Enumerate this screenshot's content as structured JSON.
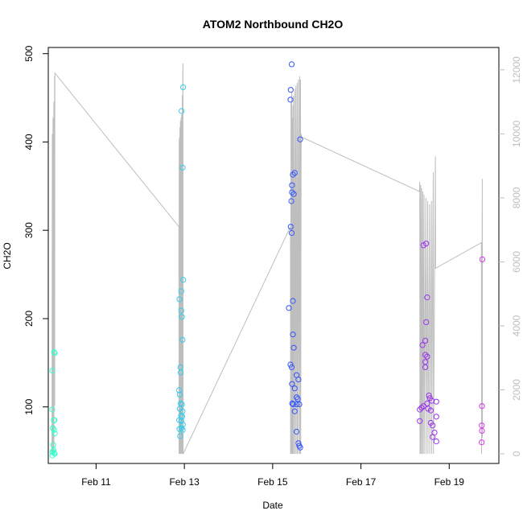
{
  "chart_data": {
    "type": "scatter",
    "title": "ATOM2 Northbound CH2O",
    "xlabel": "Date",
    "ylabel": "CH2O",
    "x_ticks": [
      "Feb 11",
      "Feb 13",
      "Feb 15",
      "Feb 17",
      "Feb 19"
    ],
    "y_ticks": [
      "100",
      "200",
      "300",
      "400",
      "500"
    ],
    "y2_ticks": [
      "0",
      "2000",
      "4000",
      "6000",
      "8000",
      "10000",
      "12000"
    ],
    "xlim": [
      "2016-02-09 22:00",
      "2016-02-20 03:00"
    ],
    "ylim": [
      36,
      507
    ],
    "y2lim": [
      -300,
      12700
    ],
    "grid": false,
    "legend": "none",
    "colors": {
      "axis": "#000000",
      "secondary": "#bebebe",
      "start": "#33ffcc",
      "mid": "#3355ff",
      "end": "#dd33ee"
    },
    "series": [
      {
        "kind": "points",
        "axis": "left",
        "points": [
          [
            "2016-02-10 00:10",
            141,
            "#33ffcc"
          ],
          [
            "2016-02-10 00:10",
            97,
            "#33ffcc"
          ],
          [
            "2016-02-10 00:30",
            76,
            "#33ffcc"
          ],
          [
            "2016-02-10 00:20",
            49,
            "#33ffcc"
          ],
          [
            "2016-02-10 00:10",
            45,
            "#33ffcc"
          ],
          [
            "2016-02-10 00:40",
            57,
            "#33ffcc"
          ],
          [
            "2016-02-10 01:10",
            162,
            "#33ffcc"
          ],
          [
            "2016-02-10 01:30",
            161,
            "#33ffcc"
          ],
          [
            "2016-02-10 01:00",
            85,
            "#33ffcc"
          ],
          [
            "2016-02-10 01:20",
            85,
            "#33ffcc"
          ],
          [
            "2016-02-10 01:10",
            74,
            "#33ffcc"
          ],
          [
            "2016-02-10 01:30",
            70,
            "#33ffcc"
          ],
          [
            "2016-02-10 01:10",
            48,
            "#33ffcc"
          ],
          [
            "2016-02-10 01:30",
            47,
            "#33ffcc"
          ],
          [
            "2016-02-10 00:50",
            51,
            "#33ffcc"
          ],
          [
            "2016-02-12 21:10",
            119,
            "#33ccee"
          ],
          [
            "2016-02-12 21:20",
            222,
            "#33ccee"
          ],
          [
            "2016-02-12 21:30",
            114,
            "#33ccee"
          ],
          [
            "2016-02-12 21:30",
            98,
            "#33ccee"
          ],
          [
            "2016-02-12 21:10",
            85,
            "#33ccee"
          ],
          [
            "2016-02-12 21:20",
            75,
            "#33ccee"
          ],
          [
            "2016-02-12 21:40",
            67,
            "#33ccee"
          ],
          [
            "2016-02-12 21:50",
            145,
            "#33ccee"
          ],
          [
            "2016-02-12 22:00",
            139,
            "#33ccee"
          ],
          [
            "2016-02-12 22:20",
            231,
            "#33ccee"
          ],
          [
            "2016-02-12 22:20",
            209,
            "#33ccee"
          ],
          [
            "2016-02-12 22:40",
            202,
            "#33ccee"
          ],
          [
            "2016-02-12 22:10",
            90,
            "#33ccee"
          ],
          [
            "2016-02-12 22:40",
            103,
            "#33ccee"
          ],
          [
            "2016-02-12 22:00",
            104,
            "#33ccee"
          ],
          [
            "2016-02-12 22:30",
            76,
            "#33ccee"
          ],
          [
            "2016-02-12 22:20",
            84,
            "#33ccee"
          ],
          [
            "2016-02-12 22:30",
            435,
            "#33ccee"
          ],
          [
            "2016-02-12 23:00",
            371,
            "#33ccee"
          ],
          [
            "2016-02-12 23:00",
            176,
            "#33ccee"
          ],
          [
            "2016-02-12 23:20",
            244,
            "#33ccee"
          ],
          [
            "2016-02-12 23:20",
            462,
            "#33ccee"
          ],
          [
            "2016-02-12 23:00",
            95,
            "#33ccee"
          ],
          [
            "2016-02-12 23:10",
            80,
            "#33ccee"
          ],
          [
            "2016-02-12 23:10",
            74,
            "#33ccee"
          ],
          [
            "2016-02-12 22:50",
            89,
            "#33ccee"
          ],
          [
            "2016-02-15 10:20",
            488,
            "#3355ff"
          ],
          [
            "2016-02-15 09:50",
            459,
            "#3355ff"
          ],
          [
            "2016-02-15 09:40",
            448,
            "#3355ff"
          ],
          [
            "2016-02-15 15:00",
            403,
            "#3355ff"
          ],
          [
            "2016-02-15 12:00",
            365,
            "#3355ff"
          ],
          [
            "2016-02-15 11:00",
            363,
            "#3355ff"
          ],
          [
            "2016-02-15 10:30",
            351,
            "#3355ff"
          ],
          [
            "2016-02-15 10:30",
            343,
            "#3355ff"
          ],
          [
            "2016-02-15 11:30",
            341,
            "#3355ff"
          ],
          [
            "2016-02-15 10:10",
            333,
            "#3355ff"
          ],
          [
            "2016-02-15 09:50",
            304,
            "#3355ff"
          ],
          [
            "2016-02-15 10:20",
            297,
            "#3355ff"
          ],
          [
            "2016-02-15 11:00",
            220,
            "#3355ff"
          ],
          [
            "2016-02-15 08:50",
            212,
            "#3355ff"
          ],
          [
            "2016-02-15 11:00",
            182,
            "#3355ff"
          ],
          [
            "2016-02-15 11:30",
            167,
            "#3355ff"
          ],
          [
            "2016-02-15 09:40",
            148,
            "#3355ff"
          ],
          [
            "2016-02-15 10:20",
            145,
            "#3355ff"
          ],
          [
            "2016-02-15 13:00",
            136,
            "#3355ff"
          ],
          [
            "2016-02-15 14:00",
            131,
            "#3355ff"
          ],
          [
            "2016-02-15 10:30",
            126,
            "#3355ff"
          ],
          [
            "2016-02-15 12:00",
            121,
            "#3355ff"
          ],
          [
            "2016-02-15 13:00",
            111,
            "#3355ff"
          ],
          [
            "2016-02-15 13:40",
            109,
            "#3355ff"
          ],
          [
            "2016-02-15 10:40",
            104,
            "#3355ff"
          ],
          [
            "2016-02-15 11:10",
            103,
            "#3355ff"
          ],
          [
            "2016-02-15 13:00",
            103,
            "#3355ff"
          ],
          [
            "2016-02-15 14:30",
            103,
            "#3355ff"
          ],
          [
            "2016-02-15 12:00",
            95,
            "#3355ff"
          ],
          [
            "2016-02-15 13:00",
            72,
            "#3355ff"
          ],
          [
            "2016-02-15 14:00",
            59,
            "#3355ff"
          ],
          [
            "2016-02-15 14:30",
            56,
            "#3355ff"
          ],
          [
            "2016-02-15 15:00",
            54,
            "#3355ff"
          ],
          [
            "2016-02-18 10:00",
            283,
            "#9933ee"
          ],
          [
            "2016-02-18 11:30",
            285,
            "#9933ee"
          ],
          [
            "2016-02-18 12:00",
            224,
            "#9933ee"
          ],
          [
            "2016-02-18 11:30",
            196,
            "#9933ee"
          ],
          [
            "2016-02-18 11:00",
            175,
            "#9933ee"
          ],
          [
            "2016-02-18 09:30",
            170,
            "#9933ee"
          ],
          [
            "2016-02-18 11:00",
            159,
            "#9933ee"
          ],
          [
            "2016-02-18 12:00",
            157,
            "#9933ee"
          ],
          [
            "2016-02-18 11:00",
            151,
            "#9933ee"
          ],
          [
            "2016-02-18 11:00",
            145,
            "#9933ee"
          ],
          [
            "2016-02-18 13:00",
            113,
            "#9933ee"
          ],
          [
            "2016-02-18 13:30",
            110,
            "#9933ee"
          ],
          [
            "2016-02-18 14:30",
            107,
            "#9933ee"
          ],
          [
            "2016-02-18 12:00",
            104,
            "#9933ee"
          ],
          [
            "2016-02-18 10:00",
            101,
            "#9933ee"
          ],
          [
            "2016-02-18 09:00",
            99,
            "#9933ee"
          ],
          [
            "2016-02-18 08:00",
            97,
            "#9933ee"
          ],
          [
            "2016-02-18 12:30",
            98,
            "#9933ee"
          ],
          [
            "2016-02-18 14:00",
            96,
            "#9933ee"
          ],
          [
            "2016-02-18 17:00",
            106,
            "#9933ee"
          ],
          [
            "2016-02-18 17:00",
            89,
            "#9933ee"
          ],
          [
            "2016-02-18 08:00",
            84,
            "#9933ee"
          ],
          [
            "2016-02-18 14:00",
            82,
            "#9933ee"
          ],
          [
            "2016-02-18 15:00",
            79,
            "#9933ee"
          ],
          [
            "2016-02-18 16:00",
            71,
            "#9933ee"
          ],
          [
            "2016-02-18 15:00",
            66,
            "#9933ee"
          ],
          [
            "2016-02-18 17:00",
            61,
            "#9933ee"
          ],
          [
            "2016-02-19 17:50",
            101,
            "#dd33ee"
          ],
          [
            "2016-02-19 17:40",
            79,
            "#dd33ee"
          ],
          [
            "2016-02-19 17:50",
            73,
            "#dd33ee"
          ],
          [
            "2016-02-19 17:40",
            60,
            "#dd33ee"
          ],
          [
            "2016-02-19 18:00",
            267,
            "#dd33ee"
          ]
        ]
      },
      {
        "kind": "line",
        "axis": "right",
        "points": [
          [
            "2016-02-10 00:00",
            0
          ],
          [
            "2016-02-10 00:10",
            10000
          ],
          [
            "2016-02-10 00:15",
            0
          ],
          [
            "2016-02-10 00:35",
            10500
          ],
          [
            "2016-02-10 00:40",
            0
          ],
          [
            "2016-02-10 01:00",
            11000
          ],
          [
            "2016-02-10 01:05",
            0
          ],
          [
            "2016-02-10 01:25",
            11800
          ],
          [
            "2016-02-10 01:30",
            1500
          ],
          [
            "2016-02-10 01:35",
            11900
          ],
          [
            "2016-02-12 21:00",
            7100
          ],
          [
            "2016-02-12 21:05",
            0
          ],
          [
            "2016-02-12 21:10",
            9800
          ],
          [
            "2016-02-12 21:15",
            0
          ],
          [
            "2016-02-12 21:20",
            9900
          ],
          [
            "2016-02-12 21:25",
            0
          ],
          [
            "2016-02-12 21:35",
            10200
          ],
          [
            "2016-02-12 21:40",
            0
          ],
          [
            "2016-02-12 21:50",
            10400
          ],
          [
            "2016-02-12 21:55",
            0
          ],
          [
            "2016-02-12 22:10",
            10500
          ],
          [
            "2016-02-12 22:15",
            0
          ],
          [
            "2016-02-12 22:30",
            10600
          ],
          [
            "2016-02-12 22:35",
            0
          ],
          [
            "2016-02-12 22:50",
            11200
          ],
          [
            "2016-02-12 22:55",
            0
          ],
          [
            "2016-02-12 23:10",
            11900
          ],
          [
            "2016-02-12 23:15",
            12200
          ],
          [
            "2016-02-12 23:20",
            0
          ],
          [
            "2016-02-15 09:40",
            7100
          ],
          [
            "2016-02-15 09:45",
            0
          ],
          [
            "2016-02-15 10:00",
            11000
          ],
          [
            "2016-02-15 10:05",
            0
          ],
          [
            "2016-02-15 10:20",
            11300
          ],
          [
            "2016-02-15 10:25",
            0
          ],
          [
            "2016-02-15 10:40",
            10500
          ],
          [
            "2016-02-15 10:45",
            0
          ],
          [
            "2016-02-15 11:00",
            10900
          ],
          [
            "2016-02-15 11:05",
            0
          ],
          [
            "2016-02-15 11:20",
            11200
          ],
          [
            "2016-02-15 11:25",
            0
          ],
          [
            "2016-02-15 12:00",
            11400
          ],
          [
            "2016-02-15 12:05",
            0
          ],
          [
            "2016-02-15 12:40",
            11500
          ],
          [
            "2016-02-15 12:45",
            0
          ],
          [
            "2016-02-15 13:20",
            11600
          ],
          [
            "2016-02-15 13:25",
            0
          ],
          [
            "2016-02-15 14:00",
            11700
          ],
          [
            "2016-02-15 14:05",
            0
          ],
          [
            "2016-02-15 14:40",
            11800
          ],
          [
            "2016-02-15 14:45",
            0
          ],
          [
            "2016-02-15 15:10",
            11700
          ],
          [
            "2016-02-15 15:15",
            0
          ],
          [
            "2016-02-15 15:30",
            10000
          ],
          [
            "2016-02-15 15:45",
            9900
          ],
          [
            "2016-02-18 07:50",
            8200
          ],
          [
            "2016-02-18 08:00",
            8500
          ],
          [
            "2016-02-18 08:05",
            0
          ],
          [
            "2016-02-18 08:30",
            8400
          ],
          [
            "2016-02-18 08:35",
            0
          ],
          [
            "2016-02-18 09:00",
            8300
          ],
          [
            "2016-02-18 09:05",
            0
          ],
          [
            "2016-02-18 09:40",
            8200
          ],
          [
            "2016-02-18 09:45",
            0
          ],
          [
            "2016-02-18 10:20",
            8100
          ],
          [
            "2016-02-18 10:25",
            0
          ],
          [
            "2016-02-18 11:20",
            8000
          ],
          [
            "2016-02-18 11:25",
            0
          ],
          [
            "2016-02-18 12:20",
            7900
          ],
          [
            "2016-02-18 12:25",
            0
          ],
          [
            "2016-02-18 13:20",
            7800
          ],
          [
            "2016-02-18 13:25",
            0
          ],
          [
            "2016-02-18 14:20",
            7900
          ],
          [
            "2016-02-18 14:25",
            0
          ],
          [
            "2016-02-18 15:20",
            8800
          ],
          [
            "2016-02-18 15:25",
            0
          ],
          [
            "2016-02-18 16:30",
            9300
          ],
          [
            "2016-02-18 16:35",
            5800
          ],
          [
            "2016-02-19 17:30",
            6600
          ],
          [
            "2016-02-19 17:35",
            0
          ],
          [
            "2016-02-19 18:00",
            8600
          ],
          [
            "2016-02-19 18:05",
            500
          ]
        ]
      }
    ]
  }
}
